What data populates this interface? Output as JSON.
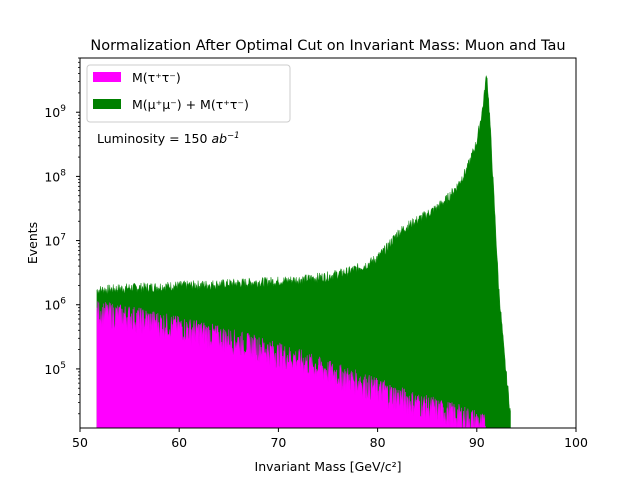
{
  "chart_data": {
    "type": "area",
    "title": "Normalization After Optimal Cut on Invariant Mass: Muon and Tau",
    "xlabel": "Invariant Mass [GeV/c²]",
    "ylabel": "Events",
    "xlim": [
      50,
      100
    ],
    "ylim": [
      12000,
      7000000000
    ],
    "yscale": "log",
    "x_ticks": [
      {
        "value": 50,
        "label": "50"
      },
      {
        "value": 60,
        "label": "60"
      },
      {
        "value": 70,
        "label": "70"
      },
      {
        "value": 80,
        "label": "80"
      },
      {
        "value": 90,
        "label": "90"
      },
      {
        "value": 100,
        "label": "100"
      }
    ],
    "y_ticks": [
      {
        "value": 100000,
        "base": "10",
        "exp": "5"
      },
      {
        "value": 1000000,
        "base": "10",
        "exp": "6"
      },
      {
        "value": 10000000,
        "base": "10",
        "exp": "7"
      },
      {
        "value": 100000000,
        "base": "10",
        "exp": "8"
      },
      {
        "value": 1000000000,
        "base": "10",
        "exp": "9"
      }
    ],
    "legend_position": "upper-left",
    "annotation": {
      "text_prefix": "Luminosity = 150 ",
      "text_unit": "ab",
      "text_exp": "−1"
    },
    "series": [
      {
        "name": "M(τ⁺τ⁻)",
        "color": "#ff00ff",
        "x": [
          51.7,
          53,
          55,
          57.5,
          60,
          62.5,
          65,
          67.5,
          70,
          72.5,
          75,
          77.5,
          80,
          82,
          84,
          86,
          88,
          90,
          91
        ],
        "y": [
          800000,
          750000,
          680000,
          560000,
          460000,
          380000,
          300000,
          240000,
          180000,
          135000,
          95000,
          70000,
          50000,
          38000,
          30000,
          24000,
          20000,
          16000,
          13000
        ]
      },
      {
        "name": "M(μ⁺μ⁻) + M(τ⁺τ⁻)",
        "color": "#008000",
        "x": [
          51.7,
          53,
          55,
          57.5,
          60,
          62.5,
          65,
          67.5,
          70,
          72.5,
          75,
          77,
          79,
          80,
          81,
          82,
          83,
          84,
          85,
          86,
          87,
          88,
          89,
          90,
          90.6,
          91,
          91.3,
          91.7,
          92.2,
          92.8,
          93.2,
          93.4
        ],
        "y": [
          1700000,
          1750000,
          1850000,
          1900000,
          2000000,
          2050000,
          2150000,
          2250000,
          2350000,
          2500000,
          2800000,
          3300000,
          4300000,
          5500000,
          8000000,
          13000000,
          17000000,
          21000000,
          26000000,
          33000000,
          45000000,
          70000000,
          130000000,
          350000000,
          1200000000,
          4200000000,
          900000000,
          60000000,
          2000000,
          150000,
          40000,
          20000
        ]
      }
    ]
  }
}
